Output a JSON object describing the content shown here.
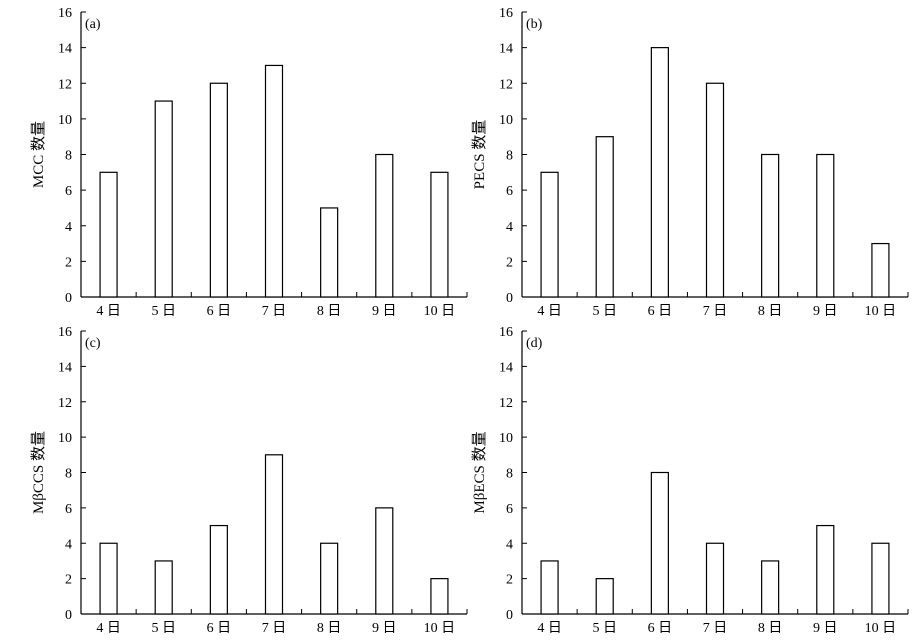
{
  "chart_data": [
    {
      "type": "bar",
      "panel_label": "(a)",
      "ylabel": "MCC 数量",
      "xlabel": "",
      "categories": [
        "4 日",
        "5 日",
        "6 日",
        "7 日",
        "8 日",
        "9 日",
        "10 日"
      ],
      "values": [
        7,
        11,
        12,
        13,
        5,
        8,
        7
      ],
      "ylim": [
        0,
        16
      ],
      "yticks": [
        0,
        2,
        4,
        6,
        8,
        10,
        12,
        14,
        16
      ],
      "grid": false,
      "legend": "none"
    },
    {
      "type": "bar",
      "panel_label": "(b)",
      "ylabel": "PECS 数量",
      "xlabel": "",
      "categories": [
        "4 日",
        "5 日",
        "6 日",
        "7 日",
        "8 日",
        "9 日",
        "10 日"
      ],
      "values": [
        7,
        9,
        14,
        12,
        8,
        8,
        3
      ],
      "ylim": [
        0,
        16
      ],
      "yticks": [
        0,
        2,
        4,
        6,
        8,
        10,
        12,
        14,
        16
      ],
      "grid": false,
      "legend": "none"
    },
    {
      "type": "bar",
      "panel_label": "(c)",
      "ylabel": "MβCCS 数量",
      "xlabel": "",
      "categories": [
        "4 日",
        "5 日",
        "6 日",
        "7 日",
        "8 日",
        "9 日",
        "10 日"
      ],
      "values": [
        4,
        3,
        5,
        9,
        4,
        6,
        2
      ],
      "ylim": [
        0,
        16
      ],
      "yticks": [
        0,
        2,
        4,
        6,
        8,
        10,
        12,
        14,
        16
      ],
      "grid": false,
      "legend": "none"
    },
    {
      "type": "bar",
      "panel_label": "(d)",
      "ylabel": "MβECS 数量",
      "xlabel": "",
      "categories": [
        "4 日",
        "5 日",
        "6 日",
        "7 日",
        "8 日",
        "9 日",
        "10 日"
      ],
      "values": [
        3,
        2,
        8,
        4,
        3,
        5,
        4
      ],
      "ylim": [
        0,
        16
      ],
      "yticks": [
        0,
        2,
        4,
        6,
        8,
        10,
        12,
        14,
        16
      ],
      "grid": false,
      "legend": "none"
    }
  ]
}
